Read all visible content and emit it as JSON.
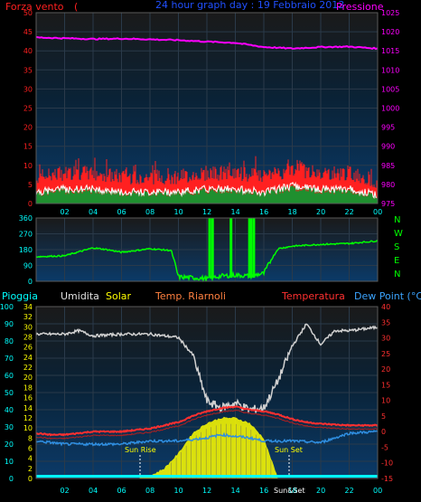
{
  "header": {
    "wind_label": "Forza vento",
    "wind_unit": "(",
    "title": "24 hour graph day : 19 Febbraio 2013",
    "pressure_label": "Pressione"
  },
  "middle": {
    "compass": [
      "N",
      "W",
      "S",
      "E",
      "N"
    ]
  },
  "bottom_header": {
    "rain_label": "Pioggia",
    "humidity_label": "Umidita",
    "solar_label": "Solar",
    "chill_label": "Temp. Riarnoli",
    "temp_label": "Temperatura",
    "dew_label": "Dew Point (°C)"
  },
  "annotations": {
    "sunrise": "Sun Rise",
    "sunset": "Sun Set",
    "solar_end": "Sun&Set"
  },
  "colors": {
    "wind": "#ff2020",
    "gust": "#ffffff",
    "pressure": "#ff00ff",
    "direction": "#00ff00",
    "humidity": "#d0d0d0",
    "solar": "#ffff00",
    "temperature": "#ff3030",
    "dew": "#3ba4ff",
    "rain": "#00ffff",
    "axis_text": "#00ffff"
  },
  "chart_data": [
    {
      "type": "line",
      "x_ticks": [
        "02",
        "04",
        "06",
        "08",
        "10",
        "12",
        "14",
        "16",
        "18",
        "20",
        "22",
        "00"
      ],
      "left_axis": {
        "ticks": [
          0,
          5,
          10,
          15,
          20,
          25,
          30,
          35,
          40,
          45,
          50
        ],
        "ylim": [
          0,
          50
        ]
      },
      "right_axis": {
        "ticks": [
          975,
          980,
          985,
          990,
          995,
          1000,
          1005,
          1010,
          1015,
          1020,
          1025
        ],
        "ylim": [
          975,
          1025
        ]
      },
      "series": [
        {
          "name": "Pressione",
          "hours": [
            0,
            2,
            4,
            6,
            8,
            10,
            12,
            14,
            16,
            18,
            20,
            22,
            24
          ],
          "values": [
            1018.5,
            1018.3,
            1018.1,
            1018.2,
            1018.0,
            1017.8,
            1017.4,
            1017.1,
            1016.0,
            1015.6,
            1016.0,
            1016.1,
            1015.6
          ]
        },
        {
          "name": "Forza vento",
          "hours": [
            0,
            2,
            4,
            6,
            8,
            10,
            12,
            14,
            16,
            18,
            20,
            22,
            24
          ],
          "values": [
            4,
            5,
            5,
            4,
            4,
            4,
            5,
            5,
            4,
            6,
            5,
            5,
            3
          ]
        }
      ]
    },
    {
      "type": "line",
      "x_ticks": [
        "02",
        "04",
        "06",
        "08",
        "10",
        "12",
        "14",
        "16",
        "18",
        "20",
        "22",
        "00"
      ],
      "left_axis": {
        "ticks": [
          0,
          90,
          180,
          270,
          360
        ],
        "ylim": [
          0,
          360
        ]
      },
      "series": [
        {
          "name": "direction",
          "hours": [
            0,
            2,
            4,
            5,
            6,
            8,
            9.5,
            10,
            12,
            13,
            14,
            15,
            16,
            16.5,
            17,
            18,
            20,
            22,
            24
          ],
          "values": [
            140,
            145,
            190,
            180,
            165,
            185,
            175,
            25,
            15,
            30,
            35,
            30,
            45,
            120,
            185,
            200,
            210,
            215,
            230
          ]
        }
      ]
    },
    {
      "type": "line",
      "x_ticks": [
        "02",
        "04",
        "06",
        "08",
        "10",
        "12",
        "14",
        "16",
        "18",
        "20",
        "22",
        "00"
      ],
      "rain_axis": {
        "ticks": [
          0,
          10,
          20,
          30,
          40,
          50,
          60,
          70,
          80,
          90,
          100
        ],
        "ylim": [
          0,
          100
        ]
      },
      "humidity_axis": {
        "ticks": [
          0,
          2,
          4,
          6,
          8,
          10,
          12,
          14,
          16,
          18,
          20,
          22,
          24,
          26,
          28,
          30,
          32,
          34
        ],
        "ylim": [
          0,
          34
        ]
      },
      "temp_axis": {
        "ticks": [
          -15,
          -10,
          -5,
          0,
          5,
          10,
          15,
          20,
          25,
          30,
          35,
          40
        ],
        "ylim": [
          -15,
          40
        ]
      },
      "series": [
        {
          "name": "Umidita",
          "hours": [
            0,
            2,
            3,
            4,
            6,
            8,
            10,
            11,
            12,
            13,
            14,
            15,
            16,
            17,
            18,
            19,
            20,
            21,
            22,
            23,
            24
          ],
          "values": [
            84,
            84,
            86,
            83,
            84,
            84,
            82,
            72,
            45,
            41,
            44,
            40,
            41,
            57,
            77,
            90,
            78,
            86,
            86,
            87,
            88
          ]
        },
        {
          "name": "Temperatura",
          "hours": [
            0,
            1,
            2,
            4,
            6,
            8,
            10,
            11,
            12,
            13,
            14,
            15,
            16,
            17,
            18,
            19,
            20,
            22,
            24
          ],
          "values": [
            -0.5,
            -1,
            -1,
            0,
            0,
            1,
            3,
            5,
            6.5,
            7.5,
            8,
            7,
            6.5,
            5.5,
            4,
            3,
            2.5,
            2,
            2
          ]
        },
        {
          "name": "Dew Point",
          "hours": [
            0,
            2,
            4,
            6,
            8,
            10,
            11,
            12,
            13,
            14,
            15,
            16,
            17,
            18,
            20,
            22,
            24
          ],
          "values": [
            -3,
            -4,
            -4,
            -4,
            -3,
            -3,
            -2.5,
            -2,
            -1,
            -1.5,
            -2,
            -3,
            -3,
            -3,
            -3.5,
            -0.5,
            0
          ]
        },
        {
          "name": "Solar",
          "hours": [
            7,
            8,
            9,
            10,
            11,
            12,
            13,
            14,
            15,
            16,
            17
          ],
          "values": [
            0,
            0.5,
            2,
            5,
            9,
            11,
            12,
            12,
            11,
            8,
            0
          ]
        }
      ]
    }
  ]
}
